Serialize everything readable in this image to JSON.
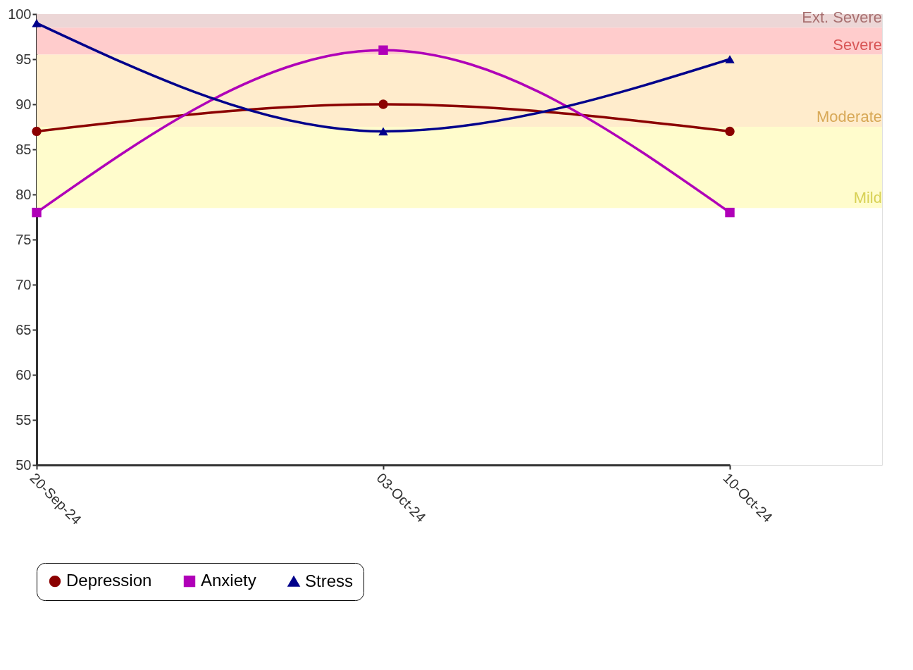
{
  "chart_data": {
    "type": "line",
    "categories": [
      "20-Sep-24",
      "03-Oct-24",
      "10-Oct-24"
    ],
    "series": [
      {
        "name": "Depression",
        "color": "#8b0000",
        "marker": "circle",
        "values": [
          87,
          90,
          87
        ]
      },
      {
        "name": "Anxiety",
        "color": "#b000b8",
        "marker": "square",
        "values": [
          78,
          96,
          78
        ]
      },
      {
        "name": "Stress",
        "color": "#00008b",
        "marker": "triangle",
        "values": [
          99,
          87,
          95
        ]
      }
    ],
    "ylim": [
      50,
      100
    ],
    "yticks": [
      50,
      55,
      60,
      65,
      70,
      75,
      80,
      85,
      90,
      95,
      100
    ],
    "bands": [
      {
        "axis": "y",
        "from": 98.5,
        "to": 100,
        "label": "Ext. Severe",
        "color": "#ecd6d6"
      },
      {
        "axis": "y",
        "from": 95.5,
        "to": 98.5,
        "label": "Severe",
        "color": "#ffcccc"
      },
      {
        "axis": "y",
        "from": 87.5,
        "to": 95.5,
        "label": "Moderate",
        "color": "#ffeccc"
      },
      {
        "axis": "y",
        "from": 78.5,
        "to": 87.5,
        "label": "Mild",
        "color": "#fffccc"
      }
    ],
    "grid": false,
    "legend": "bottom",
    "line_style": "solid"
  }
}
